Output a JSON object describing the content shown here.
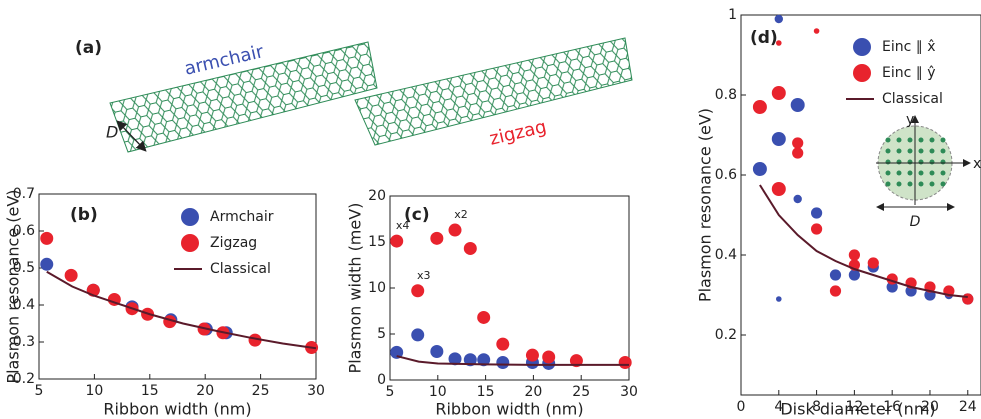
{
  "illustration": {
    "panel_label": "(a)",
    "ribbon_1": "armchair",
    "ribbon_2": "zigzag",
    "width_label": "D"
  },
  "chart_data": [
    {
      "type": "scatter",
      "panel_label": "(b)",
      "x_label": "Ribbon width (nm)",
      "y_label": "Plasmon resonance (eV)",
      "xlim": [
        5,
        30
      ],
      "ylim": [
        0.2,
        0.7
      ],
      "xticks": [
        5,
        10,
        15,
        20,
        25,
        30
      ],
      "yticks": [
        0.2,
        0.3,
        0.4,
        0.5,
        0.6,
        0.7
      ],
      "legend": "upper right",
      "series": [
        {
          "name": "Armchair",
          "type": "scatter",
          "color": "#3a4fb0",
          "x": [
            5.7,
            9.9,
            13.4,
            16.9,
            20.1,
            21.9
          ],
          "values": [
            0.51,
            0.44,
            0.395,
            0.36,
            0.335,
            0.325
          ]
        },
        {
          "name": "Zigzag",
          "type": "scatter",
          "color": "#e8232d",
          "x": [
            5.7,
            7.9,
            9.9,
            11.8,
            13.4,
            14.8,
            16.8,
            19.9,
            21.6,
            24.5,
            29.6
          ],
          "values": [
            0.58,
            0.48,
            0.44,
            0.415,
            0.39,
            0.375,
            0.355,
            0.335,
            0.325,
            0.305,
            0.285
          ]
        },
        {
          "name": "Classical",
          "type": "line",
          "color": "#5a1a2a",
          "x": [
            5.7,
            8,
            10,
            12,
            15,
            18,
            21,
            24,
            27,
            30
          ],
          "values": [
            0.49,
            0.45,
            0.425,
            0.405,
            0.375,
            0.35,
            0.33,
            0.312,
            0.296,
            0.283
          ]
        }
      ]
    },
    {
      "type": "scatter",
      "panel_label": "(c)",
      "x_label": "Ribbon width (nm)",
      "y_label": "Plasmon width (meV)",
      "xlim": [
        5,
        30
      ],
      "ylim": [
        0,
        20
      ],
      "xticks": [
        5,
        10,
        15,
        20,
        25,
        30
      ],
      "yticks": [
        0,
        5,
        10,
        15,
        20
      ],
      "annotations": [
        "x4",
        "x3",
        "x2"
      ],
      "series": [
        {
          "name": "Armchair",
          "type": "scatter",
          "color": "#3a4fb0",
          "x": [
            5.7,
            7.9,
            9.9,
            11.8,
            13.4,
            14.8,
            16.8,
            19.9,
            21.6
          ],
          "values": [
            3.0,
            4.9,
            3.1,
            2.3,
            2.2,
            2.2,
            1.9,
            1.9,
            1.8
          ]
        },
        {
          "name": "Zigzag",
          "type": "scatter",
          "color": "#e8232d",
          "x": [
            5.7,
            7.9,
            9.9,
            11.8,
            13.4,
            14.8,
            16.8,
            19.9,
            21.6,
            24.5,
            29.6
          ],
          "values": [
            15.1,
            9.7,
            15.4,
            16.3,
            14.3,
            6.8,
            3.9,
            2.7,
            2.5,
            2.1,
            1.9
          ]
        },
        {
          "name": "Classical",
          "type": "line",
          "color": "#5a1a2a",
          "x": [
            5.7,
            8,
            10,
            15,
            20,
            30
          ],
          "values": [
            2.6,
            2.0,
            1.8,
            1.7,
            1.65,
            1.65
          ]
        }
      ]
    },
    {
      "type": "scatter",
      "panel_label": "(d)",
      "x_label": "Disk diameter (nm)",
      "y_label": "Plasmon resonance (eV)",
      "xlim": [
        0,
        25.4
      ],
      "ylim": [
        0.05,
        1
      ],
      "xticks": [
        0,
        4,
        8,
        12,
        16,
        20,
        24
      ],
      "yticks": [
        0.2,
        0.4,
        0.6,
        0.8,
        1
      ],
      "legend": "upper right",
      "inset_labels": [
        "x",
        "y",
        "D"
      ],
      "series": [
        {
          "name": "Einc ∥ x̂",
          "type": "scatter",
          "color": "#3a4fb0",
          "x": [
            2,
            4,
            4,
            4,
            6,
            6,
            8,
            10,
            12,
            14,
            16,
            18,
            20,
            22,
            24
          ],
          "values": [
            0.615,
            0.69,
            0.99,
            0.29,
            0.775,
            0.54,
            0.505,
            0.35,
            0.35,
            0.37,
            0.32,
            0.31,
            0.3,
            0.3,
            0.29
          ],
          "sizes": [
            5,
            5,
            3,
            2,
            5,
            3,
            4,
            4,
            4,
            4,
            4,
            4,
            4,
            3,
            4
          ]
        },
        {
          "name": "Einc ∥ ŷ",
          "type": "scatter",
          "color": "#e8232d",
          "x": [
            2,
            4,
            4,
            4,
            6,
            6,
            8,
            8,
            10,
            12,
            12,
            14,
            16,
            18,
            20,
            22,
            24
          ],
          "values": [
            0.77,
            0.805,
            0.565,
            0.93,
            0.68,
            0.655,
            0.465,
            0.96,
            0.31,
            0.4,
            0.375,
            0.38,
            0.34,
            0.33,
            0.32,
            0.31,
            0.29
          ],
          "sizes": [
            5,
            5,
            5,
            2,
            4,
            4,
            4,
            2,
            4,
            4,
            4,
            4,
            4,
            4,
            4,
            4,
            4
          ]
        },
        {
          "name": "Classical",
          "type": "line",
          "color": "#5a1a2a",
          "x": [
            2,
            4,
            6,
            8,
            10,
            12,
            14,
            16,
            18,
            20,
            22,
            24
          ],
          "values": [
            0.575,
            0.5,
            0.45,
            0.41,
            0.385,
            0.365,
            0.35,
            0.335,
            0.32,
            0.31,
            0.3,
            0.295
          ]
        }
      ]
    }
  ]
}
